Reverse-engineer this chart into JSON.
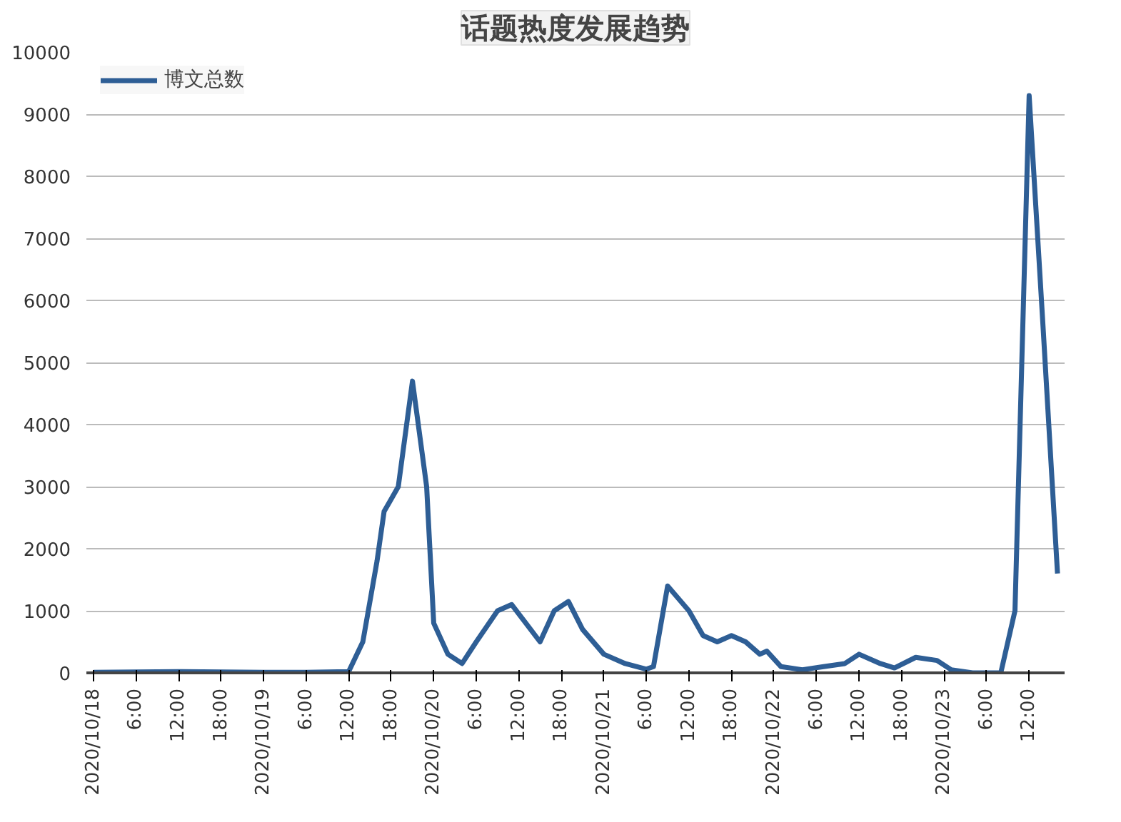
{
  "chart_data": {
    "type": "line",
    "title": "话题热度发展趋势",
    "x": [
      "2020-10-18T00:00",
      "2020-10-18T12:00",
      "2020-10-19T00:00",
      "2020-10-19T06:00",
      "2020-10-19T12:00",
      "2020-10-19T14:00",
      "2020-10-19T16:00",
      "2020-10-19T17:00",
      "2020-10-19T18:00",
      "2020-10-19T19:00",
      "2020-10-19T21:00",
      "2020-10-19T23:00",
      "2020-10-20T00:00",
      "2020-10-20T02:00",
      "2020-10-20T04:00",
      "2020-10-20T06:00",
      "2020-10-20T09:00",
      "2020-10-20T11:00",
      "2020-10-20T13:00",
      "2020-10-20T15:00",
      "2020-10-20T17:00",
      "2020-10-20T19:00",
      "2020-10-20T21:00",
      "2020-10-21T00:00",
      "2020-10-21T03:00",
      "2020-10-21T06:00",
      "2020-10-21T07:00",
      "2020-10-21T09:00",
      "2020-10-21T12:00",
      "2020-10-21T14:00",
      "2020-10-21T16:00",
      "2020-10-21T18:00",
      "2020-10-21T20:00",
      "2020-10-21T22:00",
      "2020-10-21T23:00",
      "2020-10-22T01:00",
      "2020-10-22T04:00",
      "2020-10-22T07:00",
      "2020-10-22T10:00",
      "2020-10-22T12:00",
      "2020-10-22T15:00",
      "2020-10-22T17:00",
      "2020-10-22T20:00",
      "2020-10-22T23:00",
      "2020-10-23T01:00",
      "2020-10-23T04:00",
      "2020-10-23T08:00",
      "2020-10-23T10:00",
      "2020-10-23T12:00",
      "2020-10-23T14:00",
      "2020-10-23T16:00"
    ],
    "series": [
      {
        "name": "博文总数",
        "color": "#2e5e95",
        "values": [
          10,
          20,
          10,
          10,
          20,
          500,
          1800,
          2600,
          2800,
          3000,
          4700,
          3000,
          800,
          300,
          150,
          500,
          1000,
          1100,
          800,
          500,
          1000,
          1150,
          700,
          300,
          150,
          60,
          100,
          1400,
          1000,
          600,
          500,
          600,
          500,
          300,
          350,
          100,
          50,
          100,
          150,
          300,
          150,
          80,
          250,
          200,
          50,
          0,
          0,
          1000,
          9300,
          5500,
          1600
        ]
      }
    ],
    "xlim": [
      "2020-10-17T23:00",
      "2020-10-23T17:00"
    ],
    "xticks": [
      {
        "value": "2020-10-18T00:00",
        "label": "2020/10/18"
      },
      {
        "value": "2020-10-18T06:00",
        "label": "6:00"
      },
      {
        "value": "2020-10-18T12:00",
        "label": "12:00"
      },
      {
        "value": "2020-10-18T18:00",
        "label": "18:00"
      },
      {
        "value": "2020-10-19T00:00",
        "label": "2020/10/19"
      },
      {
        "value": "2020-10-19T06:00",
        "label": "6:00"
      },
      {
        "value": "2020-10-19T12:00",
        "label": "12:00"
      },
      {
        "value": "2020-10-19T18:00",
        "label": "18:00"
      },
      {
        "value": "2020-10-20T00:00",
        "label": "2020/10/20"
      },
      {
        "value": "2020-10-20T06:00",
        "label": "6:00"
      },
      {
        "value": "2020-10-20T12:00",
        "label": "12:00"
      },
      {
        "value": "2020-10-20T18:00",
        "label": "18:00"
      },
      {
        "value": "2020-10-21T00:00",
        "label": "2020/10/21"
      },
      {
        "value": "2020-10-21T06:00",
        "label": "6:00"
      },
      {
        "value": "2020-10-21T12:00",
        "label": "12:00"
      },
      {
        "value": "2020-10-21T18:00",
        "label": "18:00"
      },
      {
        "value": "2020-10-22T00:00",
        "label": "2020/10/22"
      },
      {
        "value": "2020-10-22T06:00",
        "label": "6:00"
      },
      {
        "value": "2020-10-22T12:00",
        "label": "12:00"
      },
      {
        "value": "2020-10-22T18:00",
        "label": "18:00"
      },
      {
        "value": "2020-10-23T00:00",
        "label": "2020/10/23"
      },
      {
        "value": "2020-10-23T06:00",
        "label": "6:00"
      },
      {
        "value": "2020-10-23T12:00",
        "label": "12:00"
      }
    ],
    "ylim": [
      0,
      10000
    ],
    "yticks": [
      0,
      1000,
      2000,
      3000,
      4000,
      5000,
      6000,
      7000,
      8000,
      9000,
      10000
    ],
    "grid": "y",
    "legend": "top left",
    "marker": "none",
    "line_style": "solid"
  }
}
